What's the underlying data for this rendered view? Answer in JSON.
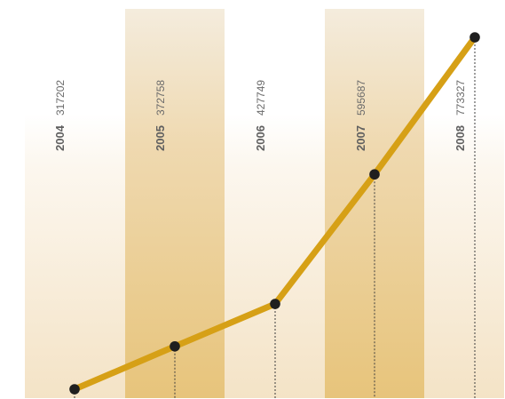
{
  "chart_data": {
    "type": "line",
    "title": "",
    "xlabel": "",
    "ylabel": "",
    "categories": [
      "2004",
      "2005",
      "2006",
      "2007",
      "2008"
    ],
    "value_labels": [
      "317202",
      "372758",
      "427749",
      "595687",
      "773327"
    ],
    "series": [
      {
        "values": [
          317202,
          372758,
          427749,
          595687,
          773327
        ]
      }
    ],
    "ylim": [
      310000,
      780000
    ],
    "grid": false,
    "legend": "none"
  },
  "colors": {
    "line": "#d6a016",
    "marker": "#1f1f1f",
    "band_strong": "#e8c57c",
    "band_light": "#f3e1c0",
    "guide": "#3c3c3c"
  }
}
